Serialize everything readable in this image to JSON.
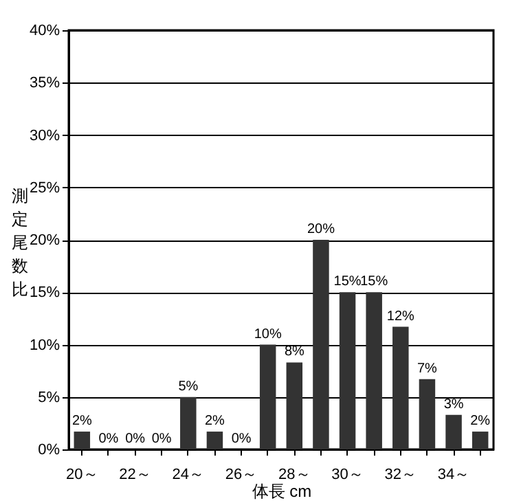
{
  "chart_data": {
    "type": "bar",
    "xlabel": "体長 cm",
    "ylabel": "測定尾数比",
    "categories": [
      "20～",
      null,
      "22～",
      null,
      "24～",
      null,
      "26～",
      null,
      "28～",
      null,
      "30～",
      null,
      "32～",
      null,
      "34～",
      null
    ],
    "values": [
      1.7,
      0,
      0,
      0,
      5,
      1.7,
      0,
      10,
      8.3,
      20,
      15,
      15,
      11.7,
      6.7,
      3.3,
      1.7
    ],
    "value_labels": [
      "2%",
      "0%",
      "0%",
      "0%",
      "5%",
      "2%",
      "0%",
      "10%",
      "8%",
      "20%",
      "15%",
      "15%",
      "12%",
      "7%",
      "3%",
      "2%"
    ],
    "color": "#333333",
    "ylim": [
      0,
      40
    ],
    "yticks": [
      {
        "value": 0,
        "label": "0%"
      },
      {
        "value": 5,
        "label": "5%"
      },
      {
        "value": 10,
        "label": "10%"
      },
      {
        "value": 15,
        "label": "15%"
      },
      {
        "value": 20,
        "label": "20%"
      },
      {
        "value": 25,
        "label": "25%"
      },
      {
        "value": 30,
        "label": "30%"
      },
      {
        "value": 35,
        "label": "35%"
      },
      {
        "value": 40,
        "label": "40%"
      }
    ],
    "grid": "y"
  }
}
